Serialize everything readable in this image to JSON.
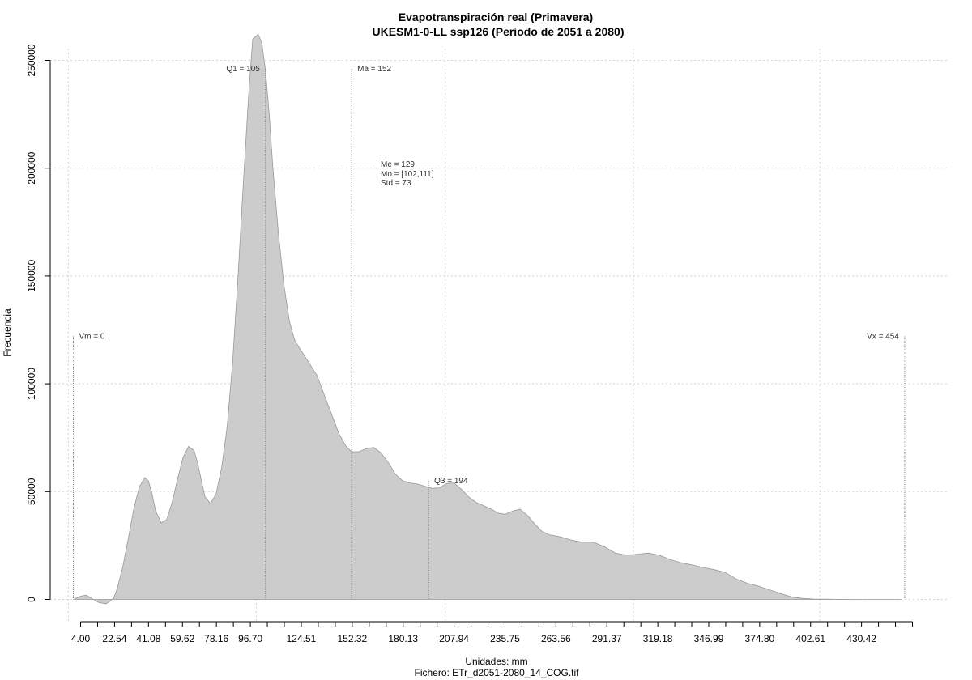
{
  "chart_data": {
    "type": "area",
    "title": "Evapotranspiración real (Primavera)",
    "subtitle": "UKESM1-0-LL ssp126 (Periodo de 2051 a 2080)",
    "xlabel": "Unidades: mm",
    "footer": "Fichero: ETr_d2051-2080_14_COG.tif",
    "ylabel": "Frecuencia",
    "xlim": [
      4.0,
      458.23
    ],
    "ylim": [
      0,
      250000
    ],
    "x_ticks": [
      4.0,
      22.54,
      41.08,
      59.62,
      78.16,
      96.7,
      124.51,
      152.32,
      180.13,
      207.94,
      235.75,
      263.56,
      291.37,
      319.18,
      346.99,
      374.8,
      402.61,
      430.42
    ],
    "x_tick_labels": [
      "4.00",
      "22.54",
      "41.08",
      "59.62",
      "78.16",
      "96.70",
      "124.51",
      "152.32",
      "180.13",
      "207.94",
      "235.75",
      "263.56",
      "291.37",
      "319.18",
      "346.99",
      "374.80",
      "402.61",
      "430.42"
    ],
    "y_ticks": [
      0,
      50000,
      100000,
      150000,
      200000,
      250000
    ],
    "y_tick_labels": [
      "0",
      "50000",
      "100000",
      "150000",
      "200000",
      "250000"
    ],
    "grid": true,
    "fill_color": "#cccccc",
    "edge_color": "#999999",
    "series": [
      {
        "x": [
          0,
          4,
          7,
          10,
          14,
          18,
          22,
          24,
          27,
          30,
          33,
          36,
          39,
          41,
          43,
          45,
          48,
          51,
          54,
          57,
          60,
          63,
          66,
          68,
          70,
          72,
          75,
          78,
          81,
          84,
          87,
          90,
          93,
          96,
          98,
          101,
          103,
          105,
          107,
          109,
          112,
          115,
          118,
          121,
          124,
          127,
          130,
          133,
          137,
          141,
          145,
          149,
          152,
          156,
          160,
          164,
          168,
          172,
          176,
          180,
          184,
          188,
          192,
          196,
          200,
          204,
          208,
          212,
          216,
          220,
          224,
          228,
          232,
          236,
          240,
          244,
          248,
          252,
          256,
          260,
          266,
          272,
          278,
          284,
          290,
          296,
          302,
          308,
          314,
          320,
          326,
          332,
          338,
          344,
          350,
          356,
          362,
          368,
          374,
          380,
          386,
          392,
          398,
          404,
          410,
          416,
          422,
          428,
          434,
          440,
          446,
          452
        ],
        "y": [
          0,
          1500,
          2000,
          500,
          -1500,
          -2000,
          500,
          5000,
          15000,
          28000,
          42000,
          52000,
          56500,
          55000,
          49000,
          41000,
          35500,
          37000,
          45000,
          56000,
          66000,
          71000,
          69000,
          63000,
          55000,
          47500,
          44500,
          49000,
          61000,
          80000,
          110000,
          150000,
          195000,
          237000,
          260000,
          262000,
          258000,
          245000,
          225000,
          200000,
          170000,
          146000,
          129000,
          120000,
          116000,
          112000,
          108000,
          104000,
          95000,
          86000,
          77000,
          71000,
          68500,
          68500,
          70000,
          70500,
          68000,
          63500,
          58000,
          55000,
          54000,
          53500,
          52500,
          51500,
          51800,
          53800,
          54000,
          51000,
          47500,
          45000,
          43500,
          42000,
          40000,
          39500,
          41000,
          41800,
          39000,
          35000,
          31500,
          30000,
          29000,
          27500,
          26500,
          26500,
          24500,
          21500,
          20500,
          21000,
          21500,
          20500,
          18500,
          17000,
          16000,
          14800,
          13800,
          12500,
          9500,
          7500,
          6200,
          4500,
          2800,
          1200,
          500,
          200,
          100,
          50,
          20,
          10,
          5,
          2,
          1,
          0
        ]
      }
    ],
    "vlines": [
      {
        "x": 0,
        "label": "Vm = 0",
        "align": "left",
        "top": 122000
      },
      {
        "x": 105,
        "label": "Q1 = 105",
        "align": "right",
        "top": 246000
      },
      {
        "x": 152,
        "label": "Ma = 152",
        "align": "left",
        "top": 246000
      },
      {
        "x": 194,
        "label": "Q3 = 194",
        "align": "left",
        "top": 55000
      },
      {
        "x": 454,
        "label": "Vx = 454",
        "align": "right",
        "top": 122000
      }
    ],
    "stats": [
      "Me = 129",
      "Mo = [102,111]",
      "Std = 73"
    ]
  }
}
